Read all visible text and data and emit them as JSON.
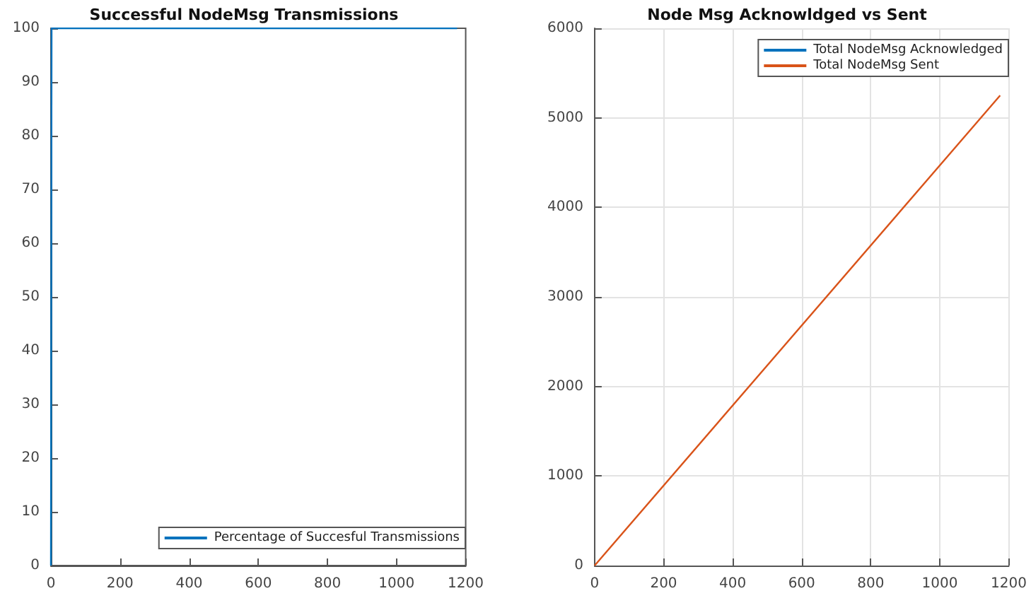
{
  "chart_data": [
    {
      "type": "line",
      "title": "Successful NodeMsg Transmissions",
      "x": [
        0,
        2,
        1175
      ],
      "series": [
        {
          "name": "Percentage of Succesful Transmissions",
          "color": "#0072bd",
          "values": [
            0,
            100,
            100
          ]
        }
      ],
      "xlim": [
        0,
        1200
      ],
      "xticks": [
        0,
        200,
        400,
        600,
        800,
        1000,
        1200
      ],
      "ylim": [
        0,
        100
      ],
      "yticks": [
        0,
        10,
        20,
        30,
        40,
        50,
        60,
        70,
        80,
        90,
        100
      ],
      "grid": false,
      "legend": "bottom right"
    },
    {
      "type": "line",
      "title": "Node Msg Acknowldged vs Sent",
      "x": [
        0,
        1175
      ],
      "series": [
        {
          "name": "Total NodeMsg Acknowledged",
          "color": "#0072bd",
          "values": [
            null,
            null
          ]
        },
        {
          "name": "Total NodeMsg Sent",
          "color": "#d95319",
          "values": [
            0,
            5250
          ]
        }
      ],
      "xlim": [
        0,
        1200
      ],
      "xticks": [
        0,
        200,
        400,
        600,
        800,
        1000,
        1200
      ],
      "ylim": [
        0,
        6000
      ],
      "yticks": [
        0,
        1000,
        2000,
        3000,
        4000,
        5000,
        6000
      ],
      "grid": true,
      "legend": "top right"
    }
  ]
}
